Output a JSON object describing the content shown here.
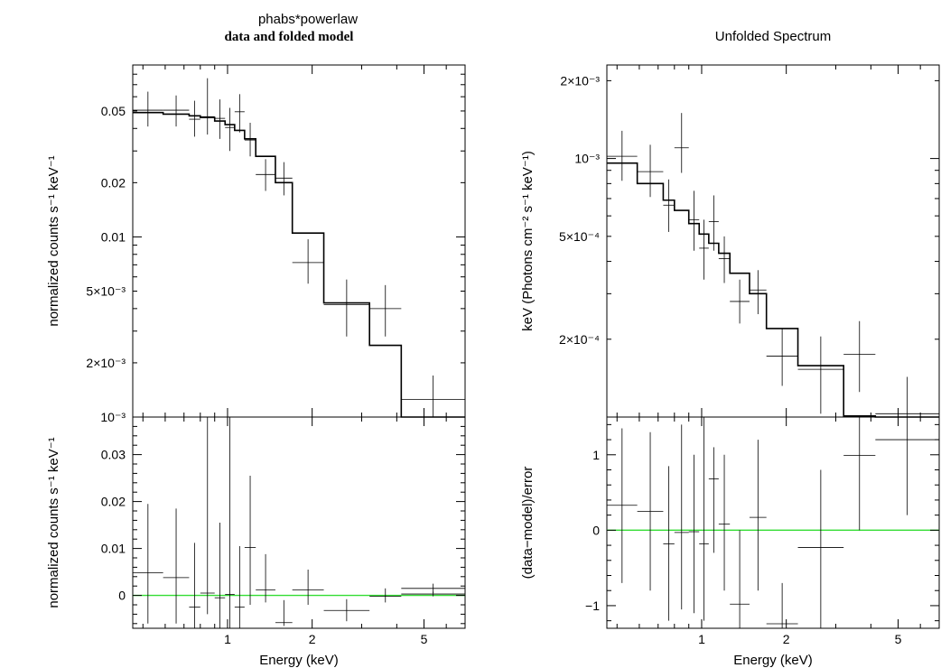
{
  "chart_data": [
    {
      "type": "line",
      "title": "phabs*powerlaw",
      "subtitle": "data and folded model",
      "top_panel": {
        "ylabel": "normalized counts s⁻¹ keV⁻¹",
        "yscale": "log",
        "ylim": [
          0.001,
          0.09
        ],
        "yticks": [
          {
            "value": 0.05,
            "label": "0.05"
          },
          {
            "value": 0.02,
            "label": "0.02"
          },
          {
            "value": 0.01,
            "label": "0.01"
          },
          {
            "value": 0.005,
            "label": "5×10⁻³"
          },
          {
            "value": 0.002,
            "label": "2×10⁻³"
          },
          {
            "value": 0.001,
            "label": "10⁻³"
          }
        ],
        "data": [
          {
            "x0": 0.46,
            "x1": 0.59,
            "y": 0.0505,
            "ylo": 0.041,
            "yhi": 0.064
          },
          {
            "x0": 0.59,
            "x1": 0.73,
            "y": 0.0505,
            "ylo": 0.041,
            "yhi": 0.061
          },
          {
            "x0": 0.73,
            "x1": 0.8,
            "y": 0.045,
            "ylo": 0.036,
            "yhi": 0.057
          },
          {
            "x0": 0.8,
            "x1": 0.9,
            "y": 0.0465,
            "ylo": 0.037,
            "yhi": 0.076
          },
          {
            "x0": 0.9,
            "x1": 0.98,
            "y": 0.0455,
            "ylo": 0.035,
            "yhi": 0.058
          },
          {
            "x0": 0.98,
            "x1": 1.06,
            "y": 0.0405,
            "ylo": 0.03,
            "yhi": 0.052
          },
          {
            "x0": 1.06,
            "x1": 1.15,
            "y": 0.0495,
            "ylo": 0.038,
            "yhi": 0.062
          },
          {
            "x0": 1.15,
            "x1": 1.26,
            "y": 0.0345,
            "ylo": 0.028,
            "yhi": 0.043
          },
          {
            "x0": 1.26,
            "x1": 1.48,
            "y": 0.0222,
            "ylo": 0.018,
            "yhi": 0.027
          },
          {
            "x0": 1.48,
            "x1": 1.7,
            "y": 0.0212,
            "ylo": 0.017,
            "yhi": 0.026
          },
          {
            "x0": 1.7,
            "x1": 2.2,
            "y": 0.0072,
            "ylo": 0.0055,
            "yhi": 0.0097
          },
          {
            "x0": 2.2,
            "x1": 3.2,
            "y": 0.0042,
            "ylo": 0.0028,
            "yhi": 0.0058
          },
          {
            "x0": 3.2,
            "x1": 4.15,
            "y": 0.004,
            "ylo": 0.0028,
            "yhi": 0.0054
          },
          {
            "x0": 4.15,
            "x1": 7.0,
            "y": 0.00125,
            "ylo": 0.00085,
            "yhi": 0.0017
          }
        ],
        "model": [
          {
            "x0": 0.46,
            "x1": 0.59,
            "y": 0.049
          },
          {
            "x0": 0.59,
            "x1": 0.73,
            "y": 0.048
          },
          {
            "x0": 0.73,
            "x1": 0.8,
            "y": 0.047
          },
          {
            "x0": 0.8,
            "x1": 0.9,
            "y": 0.046
          },
          {
            "x0": 0.9,
            "x1": 0.98,
            "y": 0.044
          },
          {
            "x0": 0.98,
            "x1": 1.06,
            "y": 0.042
          },
          {
            "x0": 1.06,
            "x1": 1.15,
            "y": 0.039
          },
          {
            "x0": 1.15,
            "x1": 1.26,
            "y": 0.035
          },
          {
            "x0": 1.26,
            "x1": 1.48,
            "y": 0.028
          },
          {
            "x0": 1.48,
            "x1": 1.7,
            "y": 0.02
          },
          {
            "x0": 1.7,
            "x1": 2.2,
            "y": 0.0105
          },
          {
            "x0": 2.2,
            "x1": 3.2,
            "y": 0.0043
          },
          {
            "x0": 3.2,
            "x1": 4.15,
            "y": 0.0025
          },
          {
            "x0": 4.15,
            "x1": 7.0,
            "y": 0.00085
          }
        ]
      },
      "bottom_panel": {
        "ylabel": "normalized counts s⁻¹ keV⁻¹",
        "yscale": "linear",
        "ylim": [
          -0.007,
          0.038
        ],
        "yticks": [
          {
            "value": 0.03,
            "label": "0.03"
          },
          {
            "value": 0.02,
            "label": "0.02"
          },
          {
            "value": 0.01,
            "label": "0.01"
          },
          {
            "value": 0,
            "label": "0"
          }
        ],
        "reference_line": 0,
        "data": [
          {
            "x0": 0.46,
            "x1": 0.59,
            "y": 0.0048,
            "ylo": -0.006,
            "yhi": 0.0195
          },
          {
            "x0": 0.59,
            "x1": 0.73,
            "y": 0.0038,
            "ylo": -0.006,
            "yhi": 0.0185
          },
          {
            "x0": 0.73,
            "x1": 0.8,
            "y": -0.0025,
            "ylo": -0.007,
            "yhi": 0.0112
          },
          {
            "x0": 0.8,
            "x1": 0.9,
            "y": 0.0005,
            "ylo": -0.004,
            "yhi": 0.038
          },
          {
            "x0": 0.9,
            "x1": 0.98,
            "y": -0.0005,
            "ylo": -0.007,
            "yhi": 0.0155
          },
          {
            "x0": 0.98,
            "x1": 1.06,
            "y": 0.0002,
            "ylo": -0.007,
            "yhi": 0.038
          },
          {
            "x0": 1.06,
            "x1": 1.15,
            "y": -0.0025,
            "ylo": -0.007,
            "yhi": 0.0105
          },
          {
            "x0": 1.15,
            "x1": 1.26,
            "y": 0.0102,
            "ylo": -0.002,
            "yhi": 0.0255
          },
          {
            "x0": 1.26,
            "x1": 1.48,
            "y": 0.0012,
            "ylo": -0.0015,
            "yhi": 0.0088
          },
          {
            "x0": 1.48,
            "x1": 1.7,
            "y": -0.0058,
            "ylo": -0.0065,
            "yhi": -0.001
          },
          {
            "x0": 1.7,
            "x1": 2.2,
            "y": 0.0012,
            "ylo": -0.002,
            "yhi": 0.0055
          },
          {
            "x0": 2.2,
            "x1": 3.2,
            "y": -0.0032,
            "ylo": -0.0055,
            "yhi": -0.0008
          },
          {
            "x0": 3.2,
            "x1": 4.15,
            "y": -0.0002,
            "ylo": -0.0015,
            "yhi": 0.0015
          },
          {
            "x0": 4.15,
            "x1": 7.0,
            "y": 0.0015,
            "ylo": 0.0005,
            "yhi": 0.0025
          },
          {
            "x0": 4.15,
            "x1": 7.0,
            "y": 0.0003,
            "ylo": -0.0002,
            "yhi": 0.0008
          }
        ]
      },
      "xlabel": "Energy (keV)",
      "xscale": "log",
      "xlim": [
        0.46,
        7.0
      ],
      "xticks": [
        {
          "value": 1,
          "label": "1"
        },
        {
          "value": 2,
          "label": "2"
        },
        {
          "value": 5,
          "label": "5"
        }
      ]
    },
    {
      "type": "line",
      "title": "Unfolded Spectrum",
      "top_panel": {
        "ylabel": "keV (Photons cm⁻² s⁻¹ keV⁻¹)",
        "yscale": "log",
        "ylim": [
          0.0001,
          0.0023
        ],
        "yticks": [
          {
            "value": 0.002,
            "label": "2×10⁻³"
          },
          {
            "value": 0.001,
            "label": "10⁻³"
          },
          {
            "value": 0.0005,
            "label": "5×10⁻⁴"
          },
          {
            "value": 0.0002,
            "label": "2×10⁻⁴"
          }
        ],
        "data": [
          {
            "x0": 0.46,
            "x1": 0.59,
            "y": 0.00102,
            "ylo": 0.00082,
            "yhi": 0.00128
          },
          {
            "x0": 0.59,
            "x1": 0.73,
            "y": 0.00089,
            "ylo": 0.00071,
            "yhi": 0.00113
          },
          {
            "x0": 0.73,
            "x1": 0.8,
            "y": 0.00066,
            "ylo": 0.00052,
            "yhi": 0.00083
          },
          {
            "x0": 0.8,
            "x1": 0.9,
            "y": 0.0011,
            "ylo": 0.00088,
            "yhi": 0.0015
          },
          {
            "x0": 0.9,
            "x1": 0.98,
            "y": 0.00058,
            "ylo": 0.00044,
            "yhi": 0.00075
          },
          {
            "x0": 0.98,
            "x1": 1.06,
            "y": 0.00045,
            "ylo": 0.00034,
            "yhi": 0.00058
          },
          {
            "x0": 1.06,
            "x1": 1.15,
            "y": 0.00057,
            "ylo": 0.00044,
            "yhi": 0.00072
          },
          {
            "x0": 1.15,
            "x1": 1.26,
            "y": 0.00041,
            "ylo": 0.00033,
            "yhi": 0.0005
          },
          {
            "x0": 1.26,
            "x1": 1.48,
            "y": 0.00028,
            "ylo": 0.00023,
            "yhi": 0.00034
          },
          {
            "x0": 1.48,
            "x1": 1.7,
            "y": 0.00031,
            "ylo": 0.00025,
            "yhi": 0.00037
          },
          {
            "x0": 1.7,
            "x1": 2.2,
            "y": 0.000172,
            "ylo": 0.000132,
            "yhi": 0.00022
          },
          {
            "x0": 2.2,
            "x1": 3.2,
            "y": 0.000153,
            "ylo": 0.000103,
            "yhi": 0.000205
          },
          {
            "x0": 3.2,
            "x1": 4.15,
            "y": 0.000175,
            "ylo": 0.000125,
            "yhi": 0.000235
          },
          {
            "x0": 4.15,
            "x1": 7.0,
            "y": 0.000103,
            "ylo": 7.5e-05,
            "yhi": 0.000143
          }
        ],
        "model": [
          {
            "x0": 0.46,
            "x1": 0.59,
            "y": 0.00096
          },
          {
            "x0": 0.59,
            "x1": 0.73,
            "y": 0.0008
          },
          {
            "x0": 0.73,
            "x1": 0.8,
            "y": 0.00069
          },
          {
            "x0": 0.8,
            "x1": 0.9,
            "y": 0.00063
          },
          {
            "x0": 0.9,
            "x1": 0.98,
            "y": 0.00056
          },
          {
            "x0": 0.98,
            "x1": 1.06,
            "y": 0.00051
          },
          {
            "x0": 1.06,
            "x1": 1.15,
            "y": 0.00047
          },
          {
            "x0": 1.15,
            "x1": 1.26,
            "y": 0.00043
          },
          {
            "x0": 1.26,
            "x1": 1.48,
            "y": 0.00036
          },
          {
            "x0": 1.48,
            "x1": 1.7,
            "y": 0.0003
          },
          {
            "x0": 1.7,
            "x1": 2.2,
            "y": 0.00022
          },
          {
            "x0": 2.2,
            "x1": 3.2,
            "y": 0.000158
          },
          {
            "x0": 3.2,
            "x1": 4.15,
            "y": 0.000101
          },
          {
            "x0": 4.15,
            "x1": 7.0,
            "y": 8e-05
          }
        ]
      },
      "bottom_panel": {
        "ylabel": "(data−model)/error",
        "yscale": "linear",
        "ylim": [
          -1.3,
          1.5
        ],
        "yticks": [
          {
            "value": 1,
            "label": "1"
          },
          {
            "value": 0,
            "label": "0"
          },
          {
            "value": -1,
            "label": "−1"
          }
        ],
        "reference_line": 0,
        "data": [
          {
            "x0": 0.46,
            "x1": 0.59,
            "y": 0.33,
            "ylo": -0.7,
            "yhi": 1.35
          },
          {
            "x0": 0.59,
            "x1": 0.73,
            "y": 0.25,
            "ylo": -0.8,
            "yhi": 1.3
          },
          {
            "x0": 0.73,
            "x1": 0.8,
            "y": -0.18,
            "ylo": -1.2,
            "yhi": 0.85
          },
          {
            "x0": 0.8,
            "x1": 0.9,
            "y": -0.03,
            "ylo": -1.05,
            "yhi": 1.4
          },
          {
            "x0": 0.9,
            "x1": 0.98,
            "y": -0.02,
            "ylo": -1.1,
            "yhi": 1.0
          },
          {
            "x0": 0.98,
            "x1": 1.06,
            "y": -0.18,
            "ylo": -1.2,
            "yhi": 1.5
          },
          {
            "x0": 1.06,
            "x1": 1.15,
            "y": 0.68,
            "ylo": -0.3,
            "yhi": 1.1
          },
          {
            "x0": 1.15,
            "x1": 1.26,
            "y": 0.08,
            "ylo": -0.8,
            "yhi": 1.0
          },
          {
            "x0": 1.26,
            "x1": 1.48,
            "y": -0.98,
            "ylo": -1.3,
            "yhi": 0.0
          },
          {
            "x0": 1.48,
            "x1": 1.7,
            "y": 0.17,
            "ylo": -0.8,
            "yhi": 1.2
          },
          {
            "x0": 1.7,
            "x1": 2.2,
            "y": -1.24,
            "ylo": -1.3,
            "yhi": -0.7
          },
          {
            "x0": 2.2,
            "x1": 3.2,
            "y": -0.23,
            "ylo": -1.3,
            "yhi": 0.8
          },
          {
            "x0": 3.2,
            "x1": 4.15,
            "y": 0.99,
            "ylo": 0.0,
            "yhi": 1.5
          },
          {
            "x0": 4.15,
            "x1": 7.0,
            "y": 1.2,
            "ylo": 0.2,
            "yhi": 1.5
          }
        ]
      },
      "xlabel": "Energy (keV)",
      "xscale": "log",
      "xlim": [
        0.46,
        7.0
      ],
      "xticks": [
        {
          "value": 1,
          "label": "1"
        },
        {
          "value": 2,
          "label": "2"
        },
        {
          "value": 5,
          "label": "5"
        }
      ]
    }
  ],
  "colors": {
    "axes": "#000000",
    "data": "#000000",
    "model": "#000000",
    "reference_line": "#33dd33",
    "background": "#ffffff"
  }
}
